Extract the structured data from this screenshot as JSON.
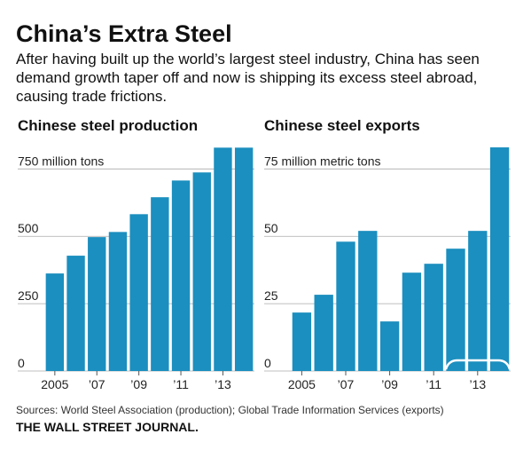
{
  "title": "China’s Extra Steel",
  "subtitle": "After having built up the world’s largest steel industry, China has seen demand growth taper off and now is shipping its excess steel abroad, causing trade frictions.",
  "chart_data": [
    {
      "type": "bar",
      "title": "Chinese steel production",
      "color": "#1b8fbf",
      "categories": [
        "2005",
        null,
        "’07",
        null,
        "’09",
        null,
        "’11",
        null,
        "’13",
        null
      ],
      "values": [
        362,
        428,
        497,
        516,
        582,
        645,
        707,
        737,
        829,
        829
      ],
      "ylim": [
        0,
        840
      ],
      "yticks": [
        0,
        250,
        500,
        {
          "value": 750,
          "label": "750 million tons"
        }
      ],
      "grid": true
    },
    {
      "type": "bar",
      "title": "Chinese steel exports",
      "color": "#1b8fbf",
      "categories": [
        "2005",
        null,
        "’07",
        null,
        "’09",
        null,
        "’11",
        null,
        "’13",
        null
      ],
      "values": [
        21.7,
        28.3,
        48,
        52,
        18.4,
        36.5,
        39.8,
        45.4,
        52,
        83
      ],
      "ylim": [
        0,
        84
      ],
      "yticks": [
        0,
        25,
        50,
        {
          "value": 75,
          "label": "75 million metric tons"
        }
      ],
      "grid": true
    }
  ],
  "source": "Sources: World Steel Association (production); Global Trade Information Services (exports)",
  "publisher": "THE WALL STREET JOURNAL."
}
